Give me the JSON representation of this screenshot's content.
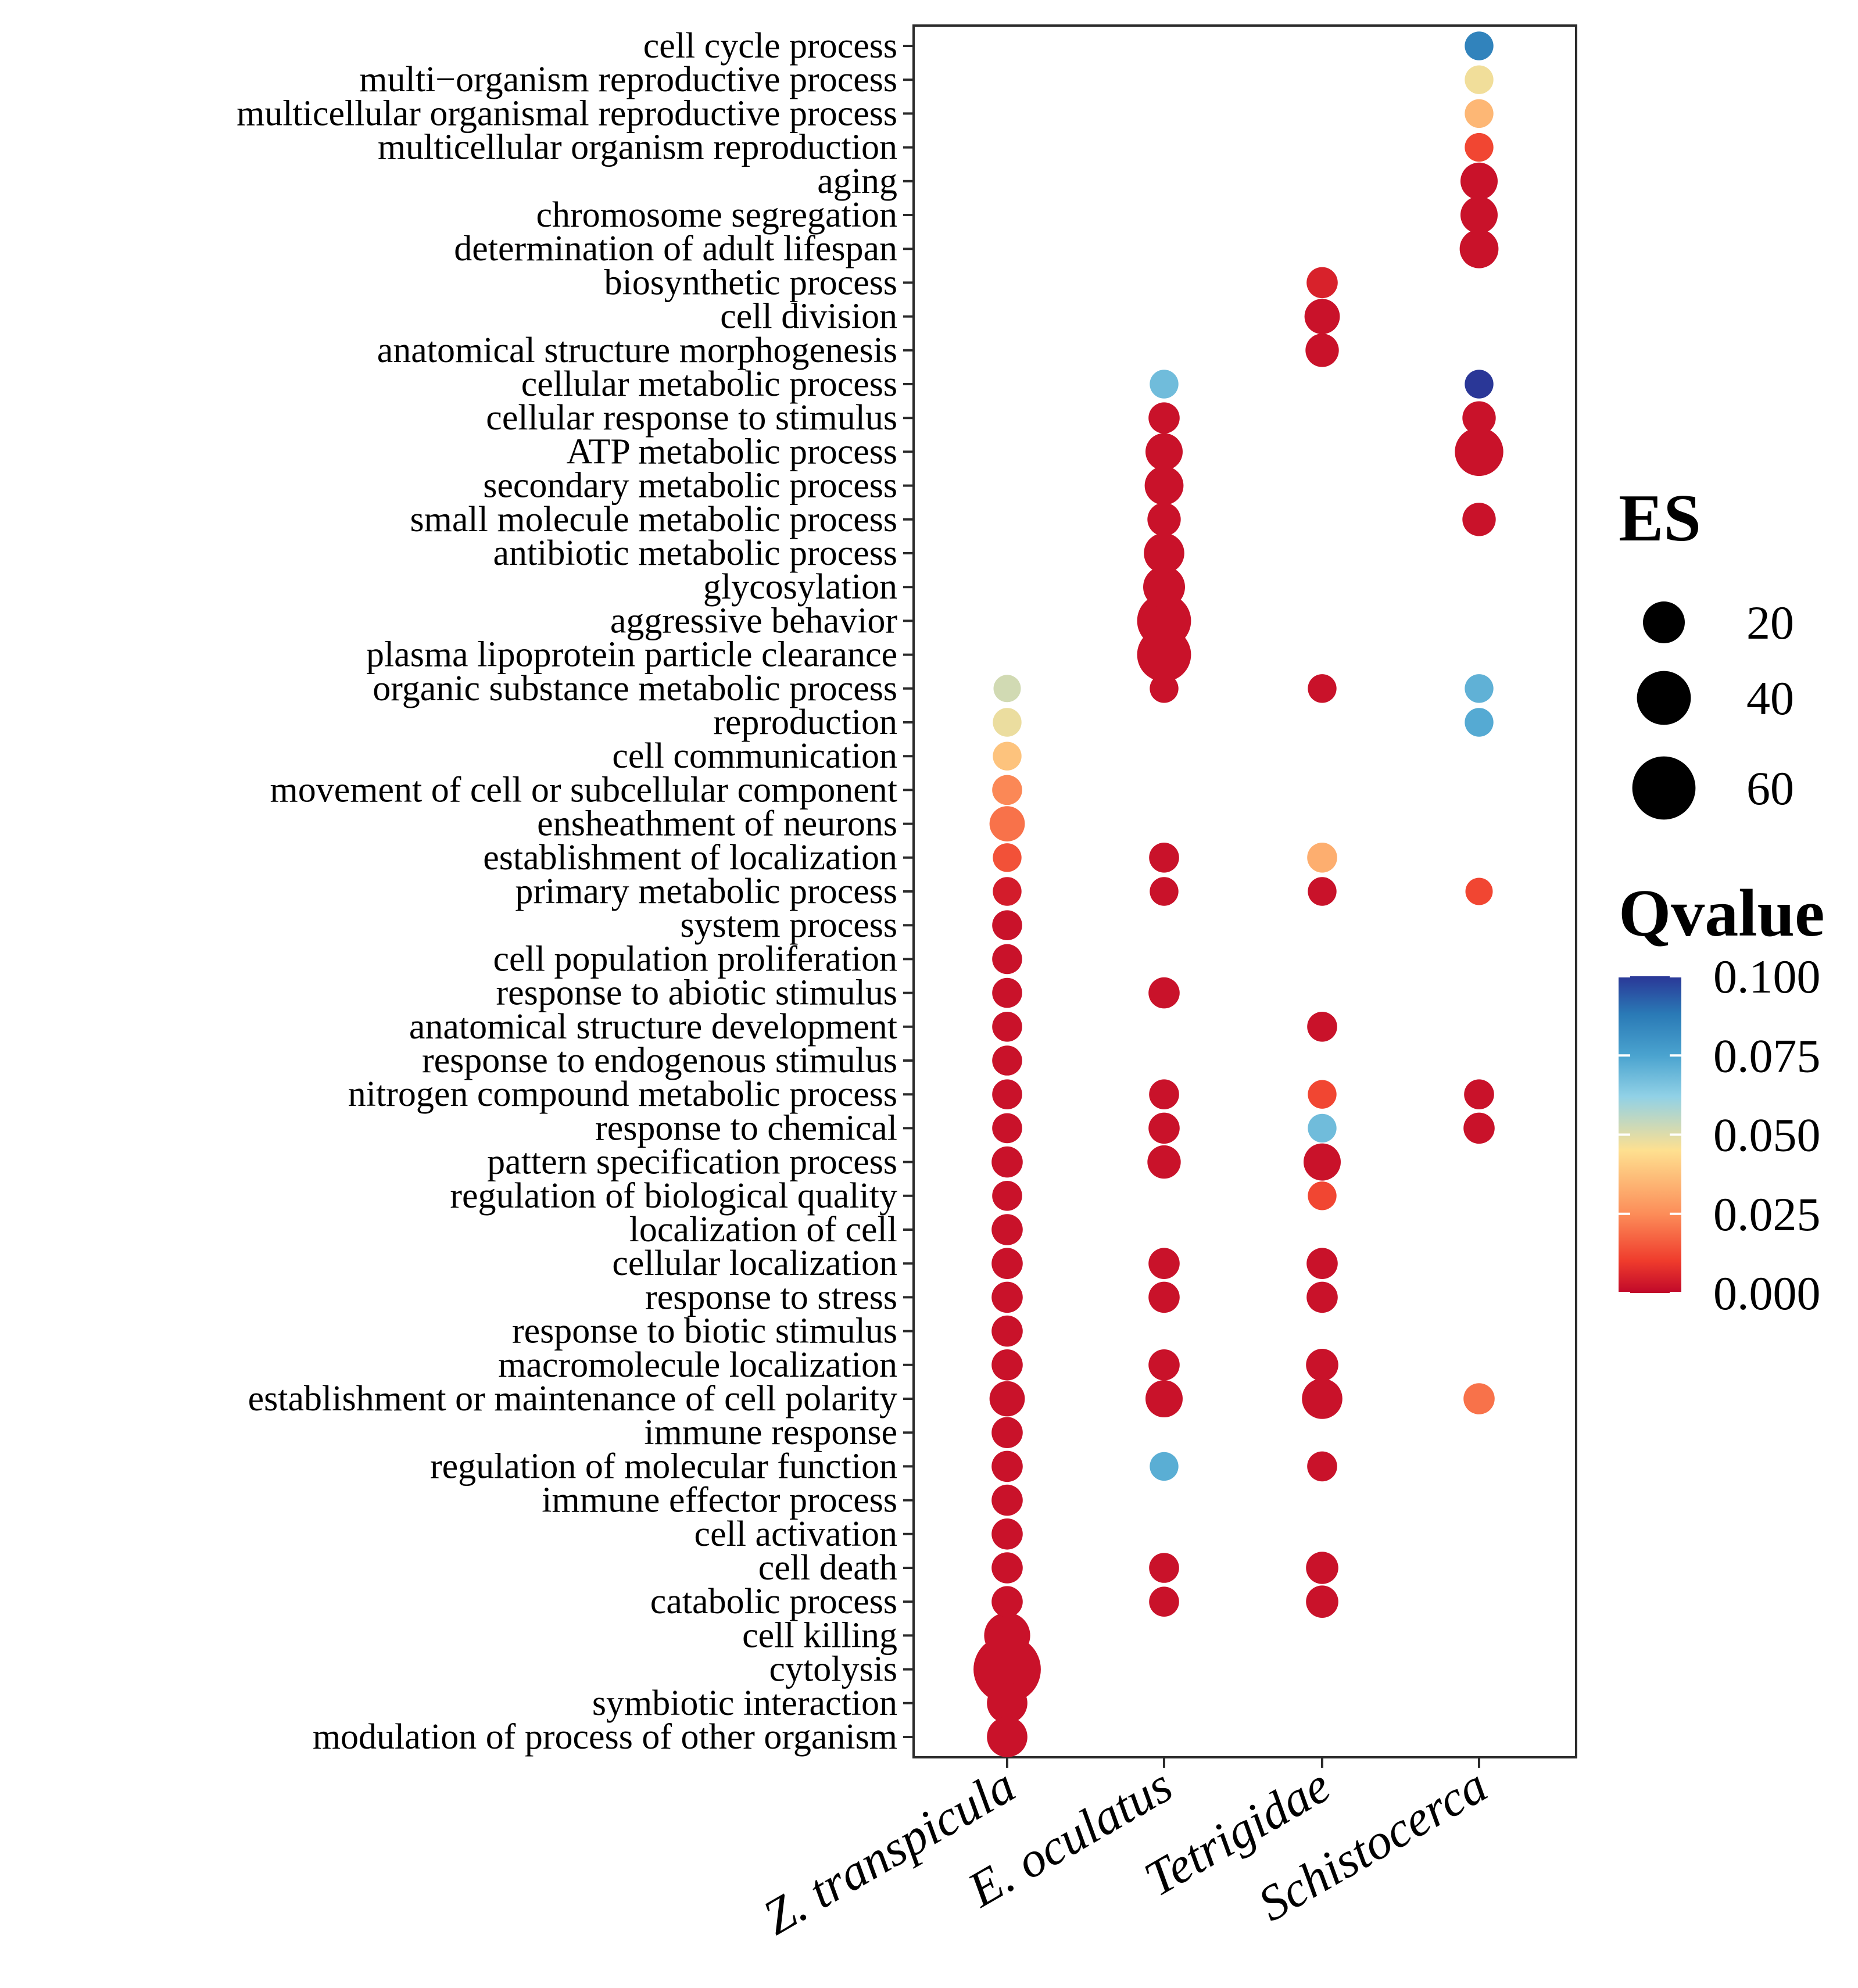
{
  "chart_data": {
    "type": "scatter",
    "subtype": "bubble-dot-plot",
    "xlabel": "",
    "ylabel": "",
    "grid": false,
    "categories_x": [
      "Z. transpicula",
      "E. oculatus",
      "Tetrigidae",
      "Schistocerca"
    ],
    "categories_y": [
      "cell cycle process",
      "multi−organism reproductive process",
      "multicellular organismal reproductive process",
      "multicellular organism reproduction",
      "aging",
      "chromosome segregation",
      "determination of adult lifespan",
      "biosynthetic process",
      "cell division",
      "anatomical structure morphogenesis",
      "cellular metabolic process",
      "cellular response to stimulus",
      "ATP metabolic process",
      "secondary metabolic process",
      "small molecule metabolic process",
      "antibiotic metabolic process",
      "glycosylation",
      "aggressive behavior",
      "plasma lipoprotein particle clearance",
      "organic substance metabolic process",
      "reproduction",
      "cell communication",
      "movement of cell or subcellular component",
      "ensheathment of neurons",
      "establishment of localization",
      "primary metabolic process",
      "system process",
      "cell population proliferation",
      "response to abiotic stimulus",
      "anatomical structure development",
      "response to endogenous stimulus",
      "nitrogen compound metabolic process",
      "response to chemical",
      "pattern specification process",
      "regulation of biological quality",
      "localization of cell",
      "cellular localization",
      "response to stress",
      "response to biotic stimulus",
      "macromolecule localization",
      "establishment or maintenance of cell polarity",
      "immune response",
      "regulation of molecular function",
      "immune effector process",
      "cell activation",
      "cell death",
      "catabolic process",
      "cell killing",
      "cytolysis",
      "symbiotic interaction",
      "modulation of process of other organism"
    ],
    "points": [
      {
        "x": "Schistocerca",
        "y": "cell cycle process",
        "es": 6,
        "q": 0.085
      },
      {
        "x": "Schistocerca",
        "y": "multi−organism reproductive process",
        "es": 6,
        "q": 0.047
      },
      {
        "x": "Schistocerca",
        "y": "multicellular organismal reproductive process",
        "es": 6,
        "q": 0.035
      },
      {
        "x": "Schistocerca",
        "y": "multicellular organism reproduction",
        "es": 6,
        "q": 0.012
      },
      {
        "x": "Schistocerca",
        "y": "aging",
        "es": 14,
        "q": 0.002
      },
      {
        "x": "Schistocerca",
        "y": "chromosome segregation",
        "es": 14,
        "q": 0.002
      },
      {
        "x": "Schistocerca",
        "y": "determination of adult lifespan",
        "es": 16,
        "q": 0.002
      },
      {
        "x": "Tetrigidae",
        "y": "biosynthetic process",
        "es": 8,
        "q": 0.005
      },
      {
        "x": "Tetrigidae",
        "y": "cell division",
        "es": 12,
        "q": 0.002
      },
      {
        "x": "Tetrigidae",
        "y": "anatomical structure morphogenesis",
        "es": 10,
        "q": 0.002
      },
      {
        "x": "E. oculatus",
        "y": "cellular metabolic process",
        "es": 6,
        "q": 0.068
      },
      {
        "x": "Schistocerca",
        "y": "cellular metabolic process",
        "es": 6,
        "q": 0.1
      },
      {
        "x": "E. oculatus",
        "y": "cellular response to stimulus",
        "es": 8,
        "q": 0.002
      },
      {
        "x": "Schistocerca",
        "y": "cellular response to stimulus",
        "es": 10,
        "q": 0.002
      },
      {
        "x": "E. oculatus",
        "y": "ATP metabolic process",
        "es": 14,
        "q": 0.002
      },
      {
        "x": "Schistocerca",
        "y": "ATP metabolic process",
        "es": 30,
        "q": 0.002
      },
      {
        "x": "E. oculatus",
        "y": "secondary metabolic process",
        "es": 16,
        "q": 0.002
      },
      {
        "x": "E. oculatus",
        "y": "small molecule metabolic process",
        "es": 10,
        "q": 0.002
      },
      {
        "x": "Schistocerca",
        "y": "small molecule metabolic process",
        "es": 10,
        "q": 0.002
      },
      {
        "x": "E. oculatus",
        "y": "antibiotic metabolic process",
        "es": 18,
        "q": 0.002
      },
      {
        "x": "E. oculatus",
        "y": "glycosylation",
        "es": 20,
        "q": 0.002
      },
      {
        "x": "E. oculatus",
        "y": "aggressive behavior",
        "es": 40,
        "q": 0.002
      },
      {
        "x": "E. oculatus",
        "y": "plasma lipoprotein particle clearance",
        "es": 40,
        "q": 0.002
      },
      {
        "x": "Z. transpicula",
        "y": "organic substance metabolic process",
        "es": 5,
        "q": 0.052
      },
      {
        "x": "E. oculatus",
        "y": "organic substance metabolic process",
        "es": 6,
        "q": 0.002
      },
      {
        "x": "Tetrigidae",
        "y": "organic substance metabolic process",
        "es": 6,
        "q": 0.002
      },
      {
        "x": "Schistocerca",
        "y": "organic substance metabolic process",
        "es": 6,
        "q": 0.071
      },
      {
        "x": "Z. transpicula",
        "y": "reproduction",
        "es": 6,
        "q": 0.048
      },
      {
        "x": "Schistocerca",
        "y": "reproduction",
        "es": 6,
        "q": 0.073
      },
      {
        "x": "Z. transpicula",
        "y": "cell communication",
        "es": 6,
        "q": 0.038
      },
      {
        "x": "Z. transpicula",
        "y": "movement of cell or subcellular component",
        "es": 7,
        "q": 0.024
      },
      {
        "x": "Z. transpicula",
        "y": "ensheathment of neurons",
        "es": 12,
        "q": 0.02
      },
      {
        "x": "Z. transpicula",
        "y": "establishment of localization",
        "es": 6,
        "q": 0.014
      },
      {
        "x": "E. oculatus",
        "y": "establishment of localization",
        "es": 7,
        "q": 0.002
      },
      {
        "x": "Tetrigidae",
        "y": "establishment of localization",
        "es": 7,
        "q": 0.033
      },
      {
        "x": "Z. transpicula",
        "y": "primary metabolic process",
        "es": 6,
        "q": 0.004
      },
      {
        "x": "E. oculatus",
        "y": "primary metabolic process",
        "es": 6,
        "q": 0.002
      },
      {
        "x": "Tetrigidae",
        "y": "primary metabolic process",
        "es": 6,
        "q": 0.002
      },
      {
        "x": "Schistocerca",
        "y": "primary metabolic process",
        "es": 5,
        "q": 0.012
      },
      {
        "x": "Z. transpicula",
        "y": "system process",
        "es": 7,
        "q": 0.002
      },
      {
        "x": "Z. transpicula",
        "y": "cell population proliferation",
        "es": 7,
        "q": 0.002
      },
      {
        "x": "Z. transpicula",
        "y": "response to abiotic stimulus",
        "es": 7,
        "q": 0.002
      },
      {
        "x": "E. oculatus",
        "y": "response to abiotic stimulus",
        "es": 8,
        "q": 0.002
      },
      {
        "x": "Z. transpicula",
        "y": "anatomical structure development",
        "es": 7,
        "q": 0.002
      },
      {
        "x": "Tetrigidae",
        "y": "anatomical structure development",
        "es": 7,
        "q": 0.002
      },
      {
        "x": "Z. transpicula",
        "y": "response to endogenous stimulus",
        "es": 7,
        "q": 0.002
      },
      {
        "x": "Z. transpicula",
        "y": "nitrogen compound metabolic process",
        "es": 7,
        "q": 0.002
      },
      {
        "x": "E. oculatus",
        "y": "nitrogen compound metabolic process",
        "es": 7,
        "q": 0.002
      },
      {
        "x": "Tetrigidae",
        "y": "nitrogen compound metabolic process",
        "es": 6,
        "q": 0.012
      },
      {
        "x": "Schistocerca",
        "y": "nitrogen compound metabolic process",
        "es": 7,
        "q": 0.002
      },
      {
        "x": "Z. transpicula",
        "y": "response to chemical",
        "es": 7,
        "q": 0.002
      },
      {
        "x": "E. oculatus",
        "y": "response to chemical",
        "es": 8,
        "q": 0.002
      },
      {
        "x": "Tetrigidae",
        "y": "response to chemical",
        "es": 6,
        "q": 0.068
      },
      {
        "x": "Schistocerca",
        "y": "response to chemical",
        "es": 8,
        "q": 0.002
      },
      {
        "x": "Z. transpicula",
        "y": "pattern specification process",
        "es": 8,
        "q": 0.002
      },
      {
        "x": "E. oculatus",
        "y": "pattern specification process",
        "es": 10,
        "q": 0.002
      },
      {
        "x": "Tetrigidae",
        "y": "pattern specification process",
        "es": 14,
        "q": 0.002
      },
      {
        "x": "Z. transpicula",
        "y": "regulation of biological quality",
        "es": 7,
        "q": 0.002
      },
      {
        "x": "Tetrigidae",
        "y": "regulation of biological quality",
        "es": 6,
        "q": 0.012
      },
      {
        "x": "Z. transpicula",
        "y": "localization of cell",
        "es": 8,
        "q": 0.002
      },
      {
        "x": "Z. transpicula",
        "y": "cellular localization",
        "es": 8,
        "q": 0.002
      },
      {
        "x": "E. oculatus",
        "y": "cellular localization",
        "es": 8,
        "q": 0.002
      },
      {
        "x": "Tetrigidae",
        "y": "cellular localization",
        "es": 8,
        "q": 0.002
      },
      {
        "x": "Z. transpicula",
        "y": "response to stress",
        "es": 8,
        "q": 0.002
      },
      {
        "x": "E. oculatus",
        "y": "response to stress",
        "es": 8,
        "q": 0.002
      },
      {
        "x": "Tetrigidae",
        "y": "response to stress",
        "es": 8,
        "q": 0.002
      },
      {
        "x": "Z. transpicula",
        "y": "response to biotic stimulus",
        "es": 8,
        "q": 0.002
      },
      {
        "x": "Z. transpicula",
        "y": "macromolecule localization",
        "es": 8,
        "q": 0.002
      },
      {
        "x": "E. oculatus",
        "y": "macromolecule localization",
        "es": 8,
        "q": 0.002
      },
      {
        "x": "Tetrigidae",
        "y": "macromolecule localization",
        "es": 9,
        "q": 0.002
      },
      {
        "x": "Z. transpicula",
        "y": "establishment or maintenance of cell polarity",
        "es": 12,
        "q": 0.002
      },
      {
        "x": "E. oculatus",
        "y": "establishment or maintenance of cell polarity",
        "es": 14,
        "q": 0.002
      },
      {
        "x": "Tetrigidae",
        "y": "establishment or maintenance of cell polarity",
        "es": 18,
        "q": 0.002
      },
      {
        "x": "Schistocerca",
        "y": "establishment or maintenance of cell polarity",
        "es": 8,
        "q": 0.02
      },
      {
        "x": "Z. transpicula",
        "y": "immune response",
        "es": 8,
        "q": 0.002
      },
      {
        "x": "Z. transpicula",
        "y": "regulation of molecular function",
        "es": 8,
        "q": 0.002
      },
      {
        "x": "E. oculatus",
        "y": "regulation of molecular function",
        "es": 6,
        "q": 0.072
      },
      {
        "x": "Tetrigidae",
        "y": "regulation of molecular function",
        "es": 7,
        "q": 0.002
      },
      {
        "x": "Z. transpicula",
        "y": "immune effector process",
        "es": 8,
        "q": 0.002
      },
      {
        "x": "Z. transpicula",
        "y": "cell activation",
        "es": 8,
        "q": 0.002
      },
      {
        "x": "Z. transpicula",
        "y": "cell death",
        "es": 8,
        "q": 0.002
      },
      {
        "x": "E. oculatus",
        "y": "cell death",
        "es": 7,
        "q": 0.002
      },
      {
        "x": "Tetrigidae",
        "y": "cell death",
        "es": 9,
        "q": 0.002
      },
      {
        "x": "Z. transpicula",
        "y": "catabolic process",
        "es": 8,
        "q": 0.002
      },
      {
        "x": "E. oculatus",
        "y": "catabolic process",
        "es": 7,
        "q": 0.002
      },
      {
        "x": "Tetrigidae",
        "y": "catabolic process",
        "es": 9,
        "q": 0.002
      },
      {
        "x": "Z. transpicula",
        "y": "cell killing",
        "es": 26,
        "q": 0.002
      },
      {
        "x": "Z. transpicula",
        "y": "cytolysis",
        "es": 70,
        "q": 0.002
      },
      {
        "x": "Z. transpicula",
        "y": "symbiotic interaction",
        "es": 18,
        "q": 0.002
      },
      {
        "x": "Z. transpicula",
        "y": "modulation of process of other organism",
        "es": 18,
        "q": 0.002
      }
    ],
    "size_legend": {
      "title": "ES",
      "values": [
        20,
        40,
        60
      ],
      "labels": [
        "20",
        "40",
        "60"
      ]
    },
    "color_legend": {
      "title": "Qvalue",
      "range": [
        0,
        0.1
      ],
      "ticks": [
        0.1,
        0.075,
        0.05,
        0.025,
        0
      ],
      "tick_labels": [
        "0.100",
        "0.075",
        "0.050",
        "0.025",
        "0.000"
      ],
      "colormap": [
        "#c0082a",
        "#ef3b2c",
        "#fc8d59",
        "#fee090",
        "#91d1e6",
        "#4aa3cf",
        "#2a7ab6",
        "#2a3797"
      ]
    }
  },
  "colors": {
    "frame": "#2b2b2b",
    "background": "#ffffff",
    "text": "#000000"
  }
}
